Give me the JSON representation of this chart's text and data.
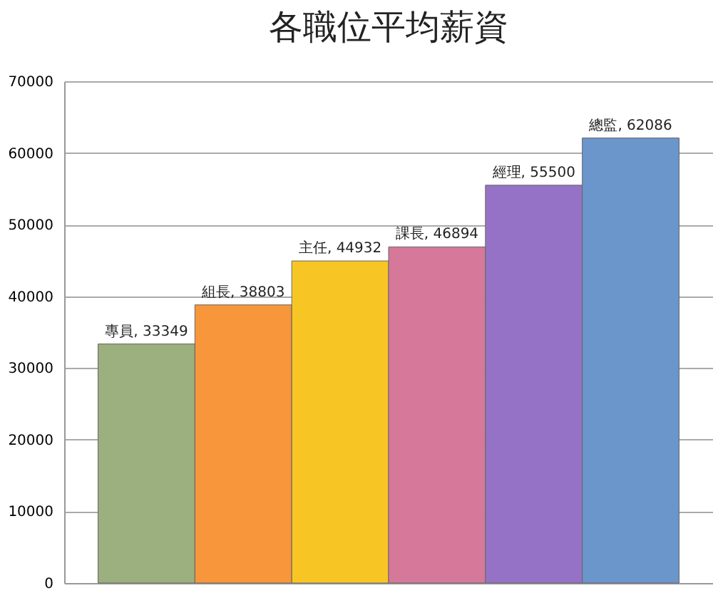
{
  "chart_data": {
    "type": "bar",
    "title": "各職位平均薪資",
    "categories": [
      null,
      null,
      null,
      null,
      null,
      null
    ],
    "values": [
      33349,
      38803,
      44932,
      46894,
      55500,
      62086
    ],
    "value_labels": [
      "專員, 33349",
      "組長, 38803",
      "主任, 44932",
      "課長, 46894",
      "經理, 55500",
      "總監, 62086"
    ],
    "colors": [
      "#9bb07e",
      "#f7963a",
      "#f7c625",
      "#d6789a",
      "#9672c6",
      "#6b96cc"
    ],
    "ylim": [
      0,
      70000
    ],
    "yticks": [
      0,
      10000,
      20000,
      30000,
      40000,
      50000,
      60000,
      70000
    ],
    "grid": "y",
    "tick_labels": "y"
  }
}
